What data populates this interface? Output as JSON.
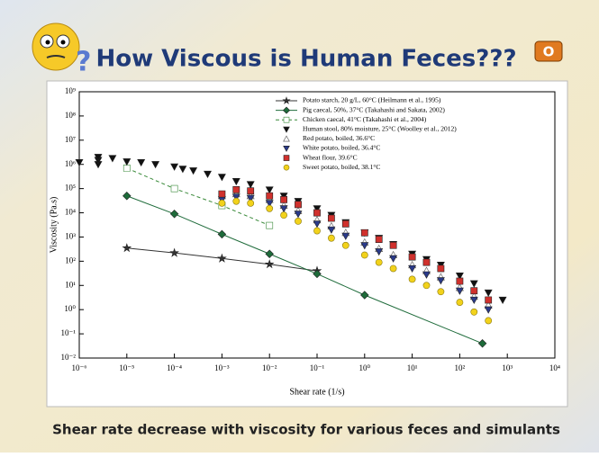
{
  "title": "How Viscous is Human Feces???",
  "caption": "Shear rate decrease with viscosity for various feces and simulants",
  "chart_data": {
    "type": "scatter",
    "xlabel": "Shear rate (1/s)",
    "ylabel": "Viscosity (Pa.s)",
    "xscale": "log",
    "yscale": "log",
    "xlim": [
      1e-06,
      10000
    ],
    "ylim": [
      0.01,
      1000000000
    ],
    "xticks": [
      {
        "value": 1e-06,
        "label": "10⁻⁶"
      },
      {
        "value": 1e-05,
        "label": "10⁻⁵"
      },
      {
        "value": 0.0001,
        "label": "10⁻⁴"
      },
      {
        "value": 0.001,
        "label": "10⁻³"
      },
      {
        "value": 0.01,
        "label": "10⁻²"
      },
      {
        "value": 0.1,
        "label": "10⁻¹"
      },
      {
        "value": 1,
        "label": "10⁰"
      },
      {
        "value": 10,
        "label": "10¹"
      },
      {
        "value": 100,
        "label": "10²"
      },
      {
        "value": 1000,
        "label": "10³"
      },
      {
        "value": 10000,
        "label": "10⁴"
      }
    ],
    "yticks": [
      {
        "value": 0.01,
        "label": "10⁻²"
      },
      {
        "value": 0.1,
        "label": "10⁻¹"
      },
      {
        "value": 1,
        "label": "10⁰"
      },
      {
        "value": 10,
        "label": "10¹"
      },
      {
        "value": 100,
        "label": "10²"
      },
      {
        "value": 1000,
        "label": "10³"
      },
      {
        "value": 10000,
        "label": "10⁴"
      },
      {
        "value": 100000,
        "label": "10⁵"
      },
      {
        "value": 1000000,
        "label": "10⁶"
      },
      {
        "value": 10000000,
        "label": "10⁷"
      },
      {
        "value": 100000000,
        "label": "10⁸"
      },
      {
        "value": 1000000000,
        "label": "10⁹"
      }
    ],
    "legend": "upper right",
    "series": [
      {
        "name": "Potato starch, 20 g/L, 60°C (Heilmann et al., 1995)",
        "color": "#333333",
        "marker": "star",
        "line": "solid",
        "x": [
          1e-05,
          0.0001,
          0.001,
          0.01,
          0.1
        ],
        "values": [
          350,
          220,
          130,
          75,
          40
        ]
      },
      {
        "name": "Pig caecal, 50%, 37°C (Takahashi and Sakata, 2002)",
        "color": "#1e6b3a",
        "marker": "diamond",
        "line": "solid",
        "x": [
          1e-05,
          0.0001,
          0.001,
          0.01,
          0.1,
          1,
          300
        ],
        "values": [
          50000,
          9000,
          1300,
          200,
          30,
          4,
          0.04
        ]
      },
      {
        "name": "Chicken caecal, 41°C (Takahashi et al., 2004)",
        "color": "#3a8a3a",
        "marker": "square-open",
        "line": "dashed",
        "x": [
          1e-05,
          0.0001,
          0.001,
          0.01
        ],
        "values": [
          700000,
          100000,
          20000,
          3000
        ]
      },
      {
        "name": "Human stool, 80% moisture, 25°C (Woolley et al., 2012)",
        "color": "#111111",
        "marker": "triangle-down",
        "line": "none",
        "x": [
          1e-06,
          2.5e-06,
          2.5e-06,
          2.5e-06,
          5e-06,
          1e-05,
          2e-05,
          4e-05,
          0.0001,
          0.00015,
          0.00025,
          0.0005,
          0.001,
          0.002,
          0.004,
          0.01,
          0.02,
          0.04,
          0.1,
          0.2,
          0.4,
          1,
          2,
          4,
          10,
          20,
          40,
          100,
          200,
          400,
          800
        ],
        "values": [
          1200000,
          1000000,
          1500000,
          2000000,
          1800000,
          1300000,
          1200000,
          1000000,
          800000,
          650000,
          550000,
          400000,
          300000,
          200000,
          150000,
          90000,
          50000,
          30000,
          15000,
          8000,
          4000,
          1500,
          900,
          500,
          200,
          120,
          70,
          25,
          12,
          5,
          2.5
        ]
      },
      {
        "name": "Red potato, boiled, 36.6°C",
        "color": "#555555",
        "marker": "triangle-open",
        "line": "none",
        "x": [
          0.001,
          0.002,
          0.004,
          0.01,
          0.02,
          0.04,
          0.1,
          0.2,
          0.4,
          1,
          2,
          4,
          10,
          20,
          40,
          100,
          200,
          400
        ],
        "values": [
          50000,
          60000,
          50000,
          35000,
          20000,
          12000,
          5000,
          2800,
          1500,
          600,
          330,
          180,
          70,
          40,
          22,
          8,
          3.5,
          1.5
        ]
      },
      {
        "name": "White potato, boiled, 36.4°C",
        "color": "#2a3a8a",
        "marker": "triangle-down",
        "line": "none",
        "x": [
          0.001,
          0.002,
          0.004,
          0.01,
          0.02,
          0.04,
          0.1,
          0.2,
          0.4,
          1,
          2,
          4,
          10,
          20,
          40,
          100,
          200,
          400
        ],
        "values": [
          35000,
          45000,
          40000,
          25000,
          15000,
          9000,
          3500,
          2000,
          1100,
          450,
          250,
          130,
          50,
          28,
          16,
          6,
          2.5,
          1
        ]
      },
      {
        "name": "Wheat flour, 39.6°C",
        "color": "#d0312d",
        "marker": "square",
        "line": "none",
        "x": [
          0.001,
          0.002,
          0.004,
          0.01,
          0.02,
          0.04,
          0.1,
          0.2,
          0.4,
          1,
          2,
          4,
          10,
          20,
          40,
          100,
          200,
          400
        ],
        "values": [
          60000,
          90000,
          80000,
          50000,
          35000,
          22000,
          10000,
          6000,
          3500,
          1500,
          800,
          450,
          150,
          90,
          50,
          15,
          6,
          2.5
        ]
      },
      {
        "name": "Sweet potato, boiled, 38.1°C",
        "color": "#f2d21b",
        "marker": "circle",
        "line": "none",
        "x": [
          0.001,
          0.002,
          0.004,
          0.01,
          0.02,
          0.04,
          0.1,
          0.2,
          0.4,
          1,
          2,
          4,
          10,
          20,
          40,
          100,
          200,
          400
        ],
        "values": [
          25000,
          30000,
          25000,
          15000,
          8000,
          4500,
          1800,
          900,
          450,
          180,
          90,
          50,
          18,
          10,
          5.5,
          2,
          0.8,
          0.35
        ]
      }
    ]
  }
}
